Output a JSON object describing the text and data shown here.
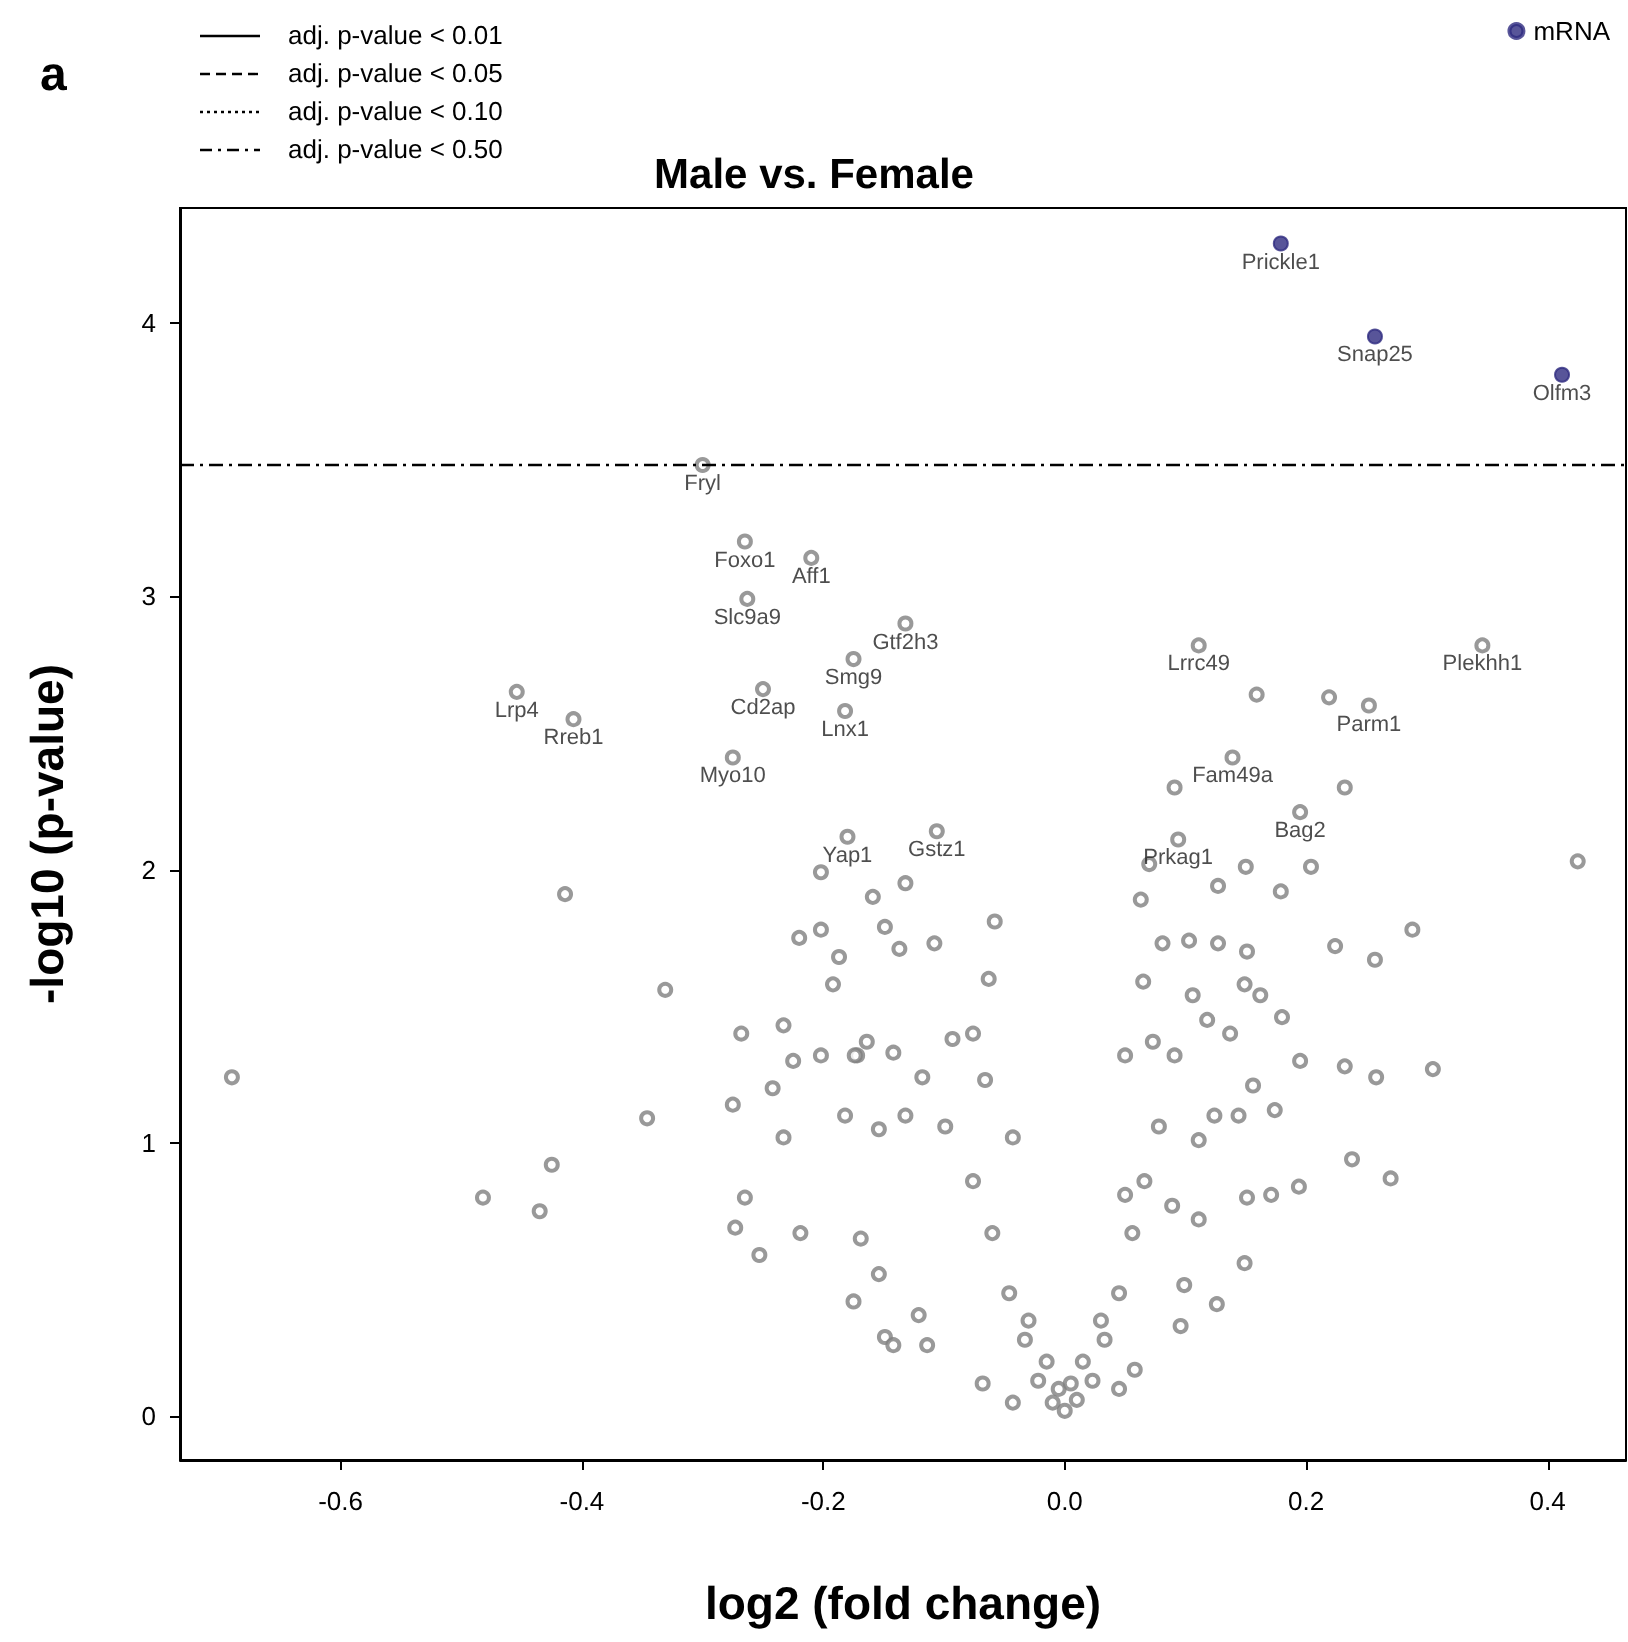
{
  "chart_data": {
    "type": "scatter",
    "title": "Male vs. Female",
    "xlabel": "log2 (fold change)",
    "ylabel": "-log10 (p-value)",
    "xlim": [
      -0.733,
      0.465
    ],
    "xticks": [
      -0.6,
      -0.4,
      -0.2,
      {
        "value": 0,
        "label": "0.0"
      },
      0.2,
      0.4
    ],
    "ylim": [
      -0.16,
      4.42
    ],
    "yticks": [
      0,
      1,
      2,
      3,
      4
    ],
    "grid": false,
    "legend": "top right",
    "marker": "circle",
    "ref_lines": [
      {
        "axis": "y",
        "value": 3.48,
        "color": "#000000",
        "line_style": "dashdot"
      }
    ],
    "annotations": [
      "a",
      "adj. p-value < 0.01",
      "adj. p-value < 0.05",
      "adj. p-value < 0.10",
      "adj. p-value < 0.50",
      {
        "text": "Prickle1",
        "x": 0.179,
        "y": 4.29
      },
      {
        "text": "Snap25",
        "x": 0.257,
        "y": 3.95
      },
      {
        "text": "Olfm3",
        "x": 0.412,
        "y": 3.81
      },
      {
        "text": "Fryl",
        "x": -0.3,
        "y": 3.48
      },
      {
        "text": "Foxo1",
        "x": -0.265,
        "y": 3.2
      },
      {
        "text": "Aff1",
        "x": -0.21,
        "y": 3.14
      },
      {
        "text": "Slc9a9",
        "x": -0.263,
        "y": 2.99
      },
      {
        "text": "Gtf2h3",
        "x": -0.132,
        "y": 2.9
      },
      {
        "text": "Smg9",
        "x": -0.175,
        "y": 2.77
      },
      {
        "text": "Lrp4",
        "x": -0.454,
        "y": 2.65
      },
      {
        "text": "Cd2ap",
        "x": -0.25,
        "y": 2.66
      },
      {
        "text": "Rreb1",
        "x": -0.407,
        "y": 2.55
      },
      {
        "text": "Lnx1",
        "x": -0.182,
        "y": 2.58
      },
      {
        "text": "Myo10",
        "x": -0.275,
        "y": 2.41
      },
      {
        "text": "Gstz1",
        "x": -0.106,
        "y": 2.14
      },
      {
        "text": "Yap1",
        "x": -0.18,
        "y": 2.12
      },
      {
        "text": "Plekhh1",
        "x": 0.346,
        "y": 2.82
      },
      {
        "text": "Lrrc49",
        "x": 0.111,
        "y": 2.82
      },
      {
        "text": "Parm1",
        "x": 0.252,
        "y": 2.6
      },
      {
        "text": "Fam49a",
        "x": 0.139,
        "y": 2.41
      },
      {
        "text": "Bag2",
        "x": 0.195,
        "y": 2.21
      },
      {
        "text": "Prkag1",
        "x": 0.094,
        "y": 2.11
      }
    ],
    "series": [
      {
        "name": "mRNA",
        "color": "#2e2a80",
        "x": [
          0.179,
          0.257,
          0.412
        ],
        "values": [
          4.29,
          3.95,
          3.81
        ]
      },
      {
        "color": "#808080",
        "x": [
          -0.3,
          -0.265,
          -0.21,
          -0.263,
          -0.132,
          -0.175,
          -0.454,
          -0.25,
          -0.407,
          -0.182,
          -0.275,
          -0.106,
          -0.18,
          0.346,
          0.111,
          0.159,
          0.219,
          0.252,
          0.091,
          0.139,
          0.195,
          0.232,
          0.094,
          0.425,
          -0.69,
          -0.482,
          -0.435,
          -0.425,
          -0.414,
          -0.331,
          -0.268,
          -0.233,
          -0.346,
          -0.275,
          -0.265,
          -0.273,
          -0.253,
          -0.219,
          -0.175,
          -0.233,
          -0.225,
          -0.202,
          -0.172,
          -0.242,
          -0.182,
          -0.154,
          -0.169,
          -0.154,
          -0.149,
          -0.22,
          -0.202,
          -0.187,
          -0.192,
          -0.202,
          -0.159,
          -0.149,
          -0.058,
          -0.063,
          -0.108,
          -0.137,
          -0.132,
          -0.164,
          -0.174,
          -0.142,
          -0.118,
          -0.076,
          -0.093,
          -0.066,
          -0.043,
          -0.132,
          -0.121,
          -0.114,
          -0.068,
          -0.043,
          -0.142,
          0.0,
          -0.022,
          -0.033,
          -0.046,
          -0.06,
          -0.076,
          -0.099,
          0.023,
          0.033,
          0.045,
          0.056,
          0.066,
          0.078,
          0.05,
          0.073,
          0.091,
          0.065,
          0.081,
          0.103,
          0.127,
          0.063,
          0.127,
          0.179,
          0.106,
          0.118,
          0.137,
          0.149,
          0.151,
          0.162,
          0.18,
          0.224,
          0.257,
          0.288,
          0.195,
          0.232,
          0.258,
          0.305,
          0.238,
          0.27,
          0.194,
          0.171,
          0.151,
          0.156,
          0.174,
          0.144,
          0.124,
          0.149,
          0.126,
          0.096,
          0.058,
          0.045,
          0.099,
          0.111,
          0.089,
          0.05,
          0.111,
          0.204,
          0.07,
          0.15,
          -0.01,
          0.01,
          -0.015,
          0.015,
          -0.03,
          0.03,
          -0.005,
          0.005
        ],
        "values": [
          3.48,
          3.2,
          3.14,
          2.99,
          2.9,
          2.77,
          2.65,
          2.66,
          2.55,
          2.58,
          2.41,
          2.14,
          2.12,
          2.82,
          2.82,
          2.64,
          2.63,
          2.6,
          2.3,
          2.41,
          2.21,
          2.3,
          2.11,
          2.03,
          1.24,
          0.8,
          0.75,
          0.92,
          1.91,
          1.56,
          1.4,
          1.43,
          1.09,
          1.14,
          0.8,
          0.69,
          0.59,
          0.67,
          0.42,
          1.02,
          1.3,
          1.32,
          1.32,
          1.2,
          1.1,
          1.05,
          0.65,
          0.52,
          0.29,
          1.75,
          1.78,
          1.68,
          1.58,
          1.99,
          1.9,
          1.79,
          1.81,
          1.6,
          1.73,
          1.71,
          1.95,
          1.37,
          1.32,
          1.33,
          1.24,
          1.4,
          1.38,
          1.23,
          1.02,
          1.1,
          0.37,
          0.26,
          0.12,
          0.05,
          0.26,
          0.02,
          0.13,
          0.28,
          0.45,
          0.67,
          0.86,
          1.06,
          0.13,
          0.28,
          0.45,
          0.67,
          0.86,
          1.06,
          1.32,
          1.37,
          1.32,
          1.59,
          1.73,
          1.74,
          1.73,
          1.89,
          1.94,
          1.92,
          1.54,
          1.45,
          1.4,
          1.58,
          1.7,
          1.54,
          1.46,
          1.72,
          1.67,
          1.78,
          1.3,
          1.28,
          1.24,
          1.27,
          0.94,
          0.87,
          0.84,
          0.81,
          0.8,
          1.21,
          1.12,
          1.1,
          1.1,
          0.56,
          0.41,
          0.33,
          0.17,
          0.1,
          0.48,
          0.72,
          0.77,
          0.81,
          1.01,
          2.01,
          2.02,
          2.01,
          0.05,
          0.06,
          0.2,
          0.2,
          0.35,
          0.35,
          0.1,
          0.12
        ]
      }
    ]
  }
}
